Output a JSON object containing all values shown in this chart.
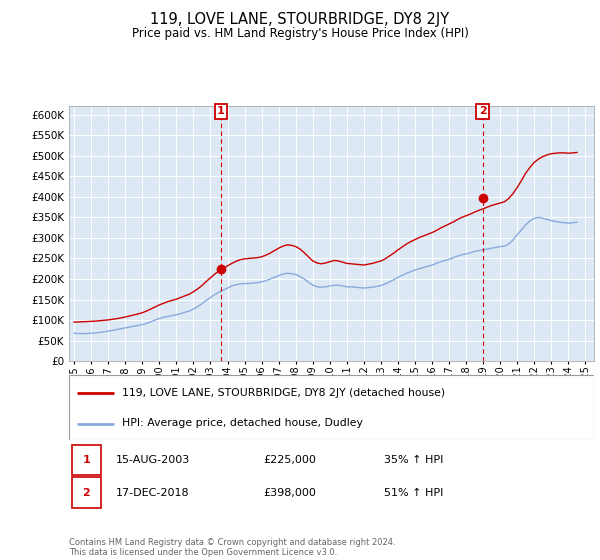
{
  "title": "119, LOVE LANE, STOURBRIDGE, DY8 2JY",
  "subtitle": "Price paid vs. HM Land Registry's House Price Index (HPI)",
  "ylabel_ticks": [
    0,
    50000,
    100000,
    150000,
    200000,
    250000,
    300000,
    350000,
    400000,
    450000,
    500000,
    550000,
    600000
  ],
  "ylabel_labels": [
    "£0",
    "£50K",
    "£100K",
    "£150K",
    "£200K",
    "£250K",
    "£300K",
    "£350K",
    "£400K",
    "£450K",
    "£500K",
    "£550K",
    "£600K"
  ],
  "ylim": [
    0,
    620000
  ],
  "xlim_start": 1994.7,
  "xlim_end": 2025.5,
  "property_color": "#cc0000",
  "hpi_color": "#88aadd",
  "background_color": "#ffffff",
  "plot_bg_color": "#dde8f5",
  "sale1_date": "15-AUG-2003",
  "sale1_price": 225000,
  "sale1_pct": "35%",
  "sale1_x": 2003.62,
  "sale2_date": "17-DEC-2018",
  "sale2_price": 398000,
  "sale2_pct": "51%",
  "sale2_x": 2018.96,
  "legend_property": "119, LOVE LANE, STOURBRIDGE, DY8 2JY (detached house)",
  "legend_hpi": "HPI: Average price, detached house, Dudley",
  "footer": "Contains HM Land Registry data © Crown copyright and database right 2024.\nThis data is licensed under the Open Government Licence v3.0.",
  "hpi_data_x": [
    1995.0,
    1995.25,
    1995.5,
    1995.75,
    1996.0,
    1996.25,
    1996.5,
    1996.75,
    1997.0,
    1997.25,
    1997.5,
    1997.75,
    1998.0,
    1998.25,
    1998.5,
    1998.75,
    1999.0,
    1999.25,
    1999.5,
    1999.75,
    2000.0,
    2000.25,
    2000.5,
    2000.75,
    2001.0,
    2001.25,
    2001.5,
    2001.75,
    2002.0,
    2002.25,
    2002.5,
    2002.75,
    2003.0,
    2003.25,
    2003.5,
    2003.75,
    2004.0,
    2004.25,
    2004.5,
    2004.75,
    2005.0,
    2005.25,
    2005.5,
    2005.75,
    2006.0,
    2006.25,
    2006.5,
    2006.75,
    2007.0,
    2007.25,
    2007.5,
    2007.75,
    2008.0,
    2008.25,
    2008.5,
    2008.75,
    2009.0,
    2009.25,
    2009.5,
    2009.75,
    2010.0,
    2010.25,
    2010.5,
    2010.75,
    2011.0,
    2011.25,
    2011.5,
    2011.75,
    2012.0,
    2012.25,
    2012.5,
    2012.75,
    2013.0,
    2013.25,
    2013.5,
    2013.75,
    2014.0,
    2014.25,
    2014.5,
    2014.75,
    2015.0,
    2015.25,
    2015.5,
    2015.75,
    2016.0,
    2016.25,
    2016.5,
    2016.75,
    2017.0,
    2017.25,
    2017.5,
    2017.75,
    2018.0,
    2018.25,
    2018.5,
    2018.75,
    2019.0,
    2019.25,
    2019.5,
    2019.75,
    2020.0,
    2020.25,
    2020.5,
    2020.75,
    2021.0,
    2021.25,
    2021.5,
    2021.75,
    2022.0,
    2022.25,
    2022.5,
    2022.75,
    2023.0,
    2023.25,
    2023.5,
    2023.75,
    2024.0,
    2024.25,
    2024.5
  ],
  "hpi_data_y": [
    68000,
    67500,
    67000,
    67500,
    68000,
    68500,
    70000,
    71500,
    73000,
    75000,
    77000,
    79000,
    81000,
    83000,
    85000,
    87000,
    89000,
    92000,
    96000,
    100000,
    104000,
    107000,
    109000,
    111000,
    113000,
    116000,
    119000,
    122000,
    127000,
    133000,
    140000,
    148000,
    155000,
    162000,
    168000,
    173000,
    178000,
    183000,
    186000,
    188000,
    189000,
    189000,
    190000,
    191000,
    193000,
    196000,
    200000,
    204000,
    208000,
    212000,
    214000,
    213000,
    211000,
    206000,
    200000,
    192000,
    185000,
    181000,
    180000,
    181000,
    183000,
    185000,
    185000,
    183000,
    181000,
    181000,
    180000,
    179000,
    178000,
    179000,
    180000,
    182000,
    184000,
    188000,
    193000,
    198000,
    204000,
    209000,
    214000,
    218000,
    222000,
    225000,
    228000,
    231000,
    234000,
    238000,
    242000,
    245000,
    248000,
    252000,
    256000,
    259000,
    261000,
    264000,
    267000,
    269000,
    271000,
    273000,
    275000,
    277000,
    279000,
    280000,
    285000,
    295000,
    308000,
    320000,
    332000,
    342000,
    348000,
    350000,
    348000,
    345000,
    342000,
    340000,
    338000,
    337000,
    336000,
    337000,
    338000
  ],
  "prop_data_x": [
    1995.0,
    1995.25,
    1995.5,
    1995.75,
    1996.0,
    1996.25,
    1996.5,
    1996.75,
    1997.0,
    1997.25,
    1997.5,
    1997.75,
    1998.0,
    1998.25,
    1998.5,
    1998.75,
    1999.0,
    1999.25,
    1999.5,
    1999.75,
    2000.0,
    2000.25,
    2000.5,
    2000.75,
    2001.0,
    2001.25,
    2001.5,
    2001.75,
    2002.0,
    2002.25,
    2002.5,
    2002.75,
    2003.0,
    2003.25,
    2003.5,
    2003.75,
    2004.0,
    2004.25,
    2004.5,
    2004.75,
    2005.0,
    2005.25,
    2005.5,
    2005.75,
    2006.0,
    2006.25,
    2006.5,
    2006.75,
    2007.0,
    2007.25,
    2007.5,
    2007.75,
    2008.0,
    2008.25,
    2008.5,
    2008.75,
    2009.0,
    2009.25,
    2009.5,
    2009.75,
    2010.0,
    2010.25,
    2010.5,
    2010.75,
    2011.0,
    2011.25,
    2011.5,
    2011.75,
    2012.0,
    2012.25,
    2012.5,
    2012.75,
    2013.0,
    2013.25,
    2013.5,
    2013.75,
    2014.0,
    2014.25,
    2014.5,
    2014.75,
    2015.0,
    2015.25,
    2015.5,
    2015.75,
    2016.0,
    2016.25,
    2016.5,
    2016.75,
    2017.0,
    2017.25,
    2017.5,
    2017.75,
    2018.0,
    2018.25,
    2018.5,
    2018.75,
    2019.0,
    2019.25,
    2019.5,
    2019.75,
    2020.0,
    2020.25,
    2020.5,
    2020.75,
    2021.0,
    2021.25,
    2021.5,
    2021.75,
    2022.0,
    2022.25,
    2022.5,
    2022.75,
    2023.0,
    2023.25,
    2023.5,
    2023.75,
    2024.0,
    2024.25,
    2024.5
  ],
  "prop_data_y": [
    95000,
    95500,
    96000,
    96500,
    97000,
    97500,
    98500,
    99500,
    100500,
    102000,
    103500,
    105500,
    107500,
    110000,
    112500,
    115000,
    118000,
    122000,
    127000,
    132000,
    137000,
    141000,
    145000,
    148000,
    151000,
    155000,
    159000,
    163000,
    169000,
    176000,
    184000,
    194000,
    203000,
    212000,
    220000,
    226000,
    232000,
    238000,
    243000,
    247000,
    249000,
    250000,
    251000,
    252000,
    254000,
    258000,
    263000,
    269000,
    275000,
    280000,
    283000,
    282000,
    279000,
    273000,
    264000,
    254000,
    244000,
    239000,
    237000,
    239000,
    242000,
    245000,
    244000,
    241000,
    238000,
    237000,
    236000,
    235000,
    234000,
    236000,
    238000,
    241000,
    244000,
    249000,
    256000,
    263000,
    271000,
    278000,
    285000,
    291000,
    296000,
    301000,
    305000,
    309000,
    313000,
    318000,
    324000,
    329000,
    334000,
    339000,
    345000,
    350000,
    354000,
    358000,
    363000,
    367000,
    371000,
    375000,
    379000,
    382000,
    385000,
    388000,
    396000,
    408000,
    423000,
    440000,
    458000,
    472000,
    484000,
    492000,
    498000,
    502000,
    505000,
    506000,
    507000,
    507000,
    506000,
    507000,
    508000
  ]
}
